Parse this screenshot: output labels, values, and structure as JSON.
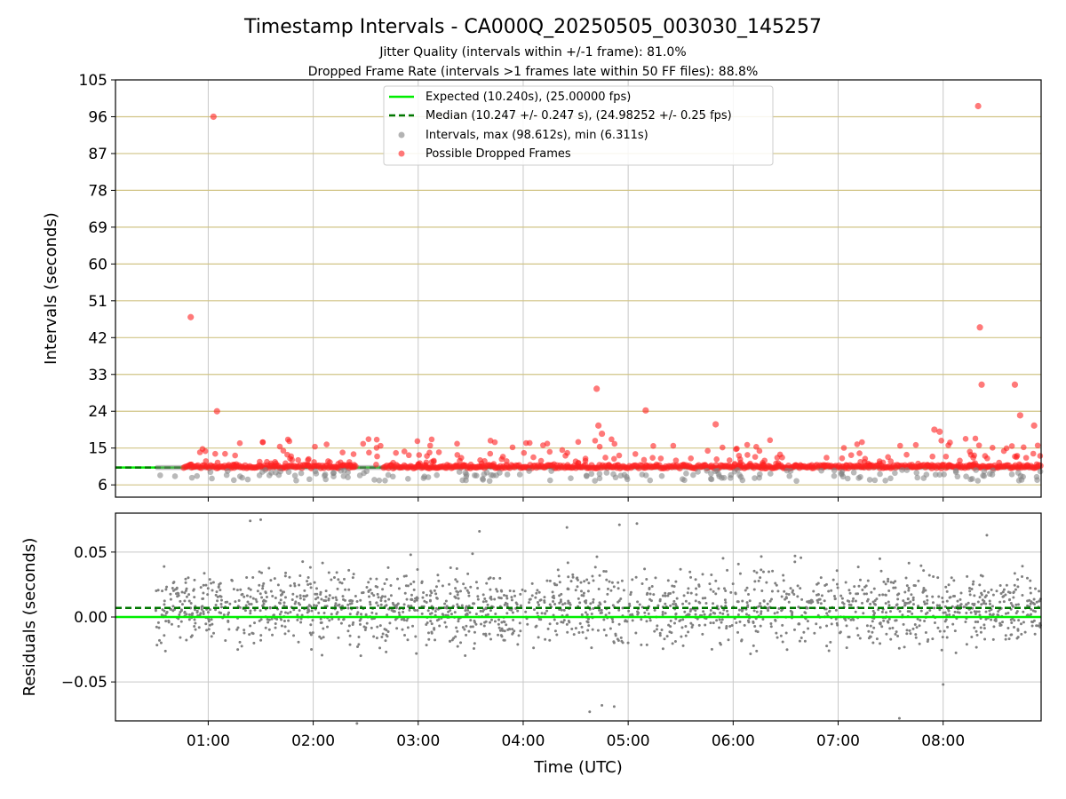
{
  "chart_data": [
    {
      "type": "scatter",
      "title": "Timestamp Intervals - CA000Q_20250505_003030_145257",
      "subtitle_lines": [
        "Jitter Quality (intervals within +/-1 frame): 81.0%",
        "Dropped Frame Rate (intervals >1 frames late within 50 FF files): 88.8%"
      ],
      "ylabel": "Intervals (seconds)",
      "ylim": [
        3,
        105
      ],
      "yticks": [
        6,
        15,
        24,
        33,
        42,
        51,
        60,
        69,
        78,
        87,
        96,
        105
      ],
      "xlim": [
        "00:07",
        "08:56"
      ],
      "xticks": [
        "01:00",
        "02:00",
        "03:00",
        "04:00",
        "05:00",
        "06:00",
        "07:00",
        "08:00"
      ],
      "grid": true,
      "legend_position": "top-center",
      "legend": [
        "Expected (10.240s), (25.00000 fps)",
        "Median (10.247 +/- 0.247 s), (24.98252 +/- 0.25 fps)",
        "Intervals, max (98.612s), min (6.311s)",
        "Possible Dropped Frames"
      ],
      "expected_interval": 10.24,
      "median_interval": 10.247,
      "time_range": [
        "00:30",
        "08:56"
      ],
      "outliers": [
        {
          "x": "00:50",
          "y": 47
        },
        {
          "x": "01:03",
          "y": 96
        },
        {
          "x": "01:05",
          "y": 24
        },
        {
          "x": "04:42",
          "y": 29.5
        },
        {
          "x": "04:43",
          "y": 20.5
        },
        {
          "x": "04:45",
          "y": 18.5
        },
        {
          "x": "05:10",
          "y": 24.2
        },
        {
          "x": "05:50",
          "y": 20.8
        },
        {
          "x": "07:55",
          "y": 19.5
        },
        {
          "x": "07:58",
          "y": 19
        },
        {
          "x": "08:20",
          "y": 98.6
        },
        {
          "x": "08:21",
          "y": 44.5
        },
        {
          "x": "08:22",
          "y": 30.5
        },
        {
          "x": "08:41",
          "y": 30.5
        },
        {
          "x": "08:44",
          "y": 23
        },
        {
          "x": "08:52",
          "y": 20.5
        }
      ],
      "colors": {
        "expected": "#00ee00",
        "median": "#007700",
        "intervals": "#808080",
        "dropped": "#ff2020",
        "hgrid": "#d1c486",
        "vgrid": "#c8c8c8"
      }
    },
    {
      "type": "scatter",
      "xlabel": "Time (UTC)",
      "ylabel": "Residuals (seconds)",
      "ylim": [
        -0.08,
        0.08
      ],
      "yticks": [
        -0.05,
        0.0,
        0.05
      ],
      "ytick_labels": [
        "−0.05",
        "0.00",
        "0.05"
      ],
      "xlim": [
        "00:07",
        "08:56"
      ],
      "xticks": [
        "01:00",
        "02:00",
        "03:00",
        "04:00",
        "05:00",
        "06:00",
        "07:00",
        "08:00"
      ],
      "grid": true,
      "expected_residual": 0.0,
      "median_residual": 0.007,
      "residual_spread": 0.02,
      "outliers": [
        {
          "x": "01:24",
          "y": 0.074
        },
        {
          "x": "01:30",
          "y": 0.075
        },
        {
          "x": "02:25",
          "y": -0.082
        },
        {
          "x": "03:35",
          "y": 0.066
        },
        {
          "x": "04:25",
          "y": 0.069
        },
        {
          "x": "04:38",
          "y": -0.073
        },
        {
          "x": "04:45",
          "y": -0.068
        },
        {
          "x": "04:52",
          "y": -0.069
        },
        {
          "x": "04:55",
          "y": 0.071
        },
        {
          "x": "05:05",
          "y": 0.072
        },
        {
          "x": "07:35",
          "y": -0.078
        },
        {
          "x": "08:00",
          "y": -0.052
        },
        {
          "x": "08:25",
          "y": 0.063
        }
      ]
    }
  ]
}
